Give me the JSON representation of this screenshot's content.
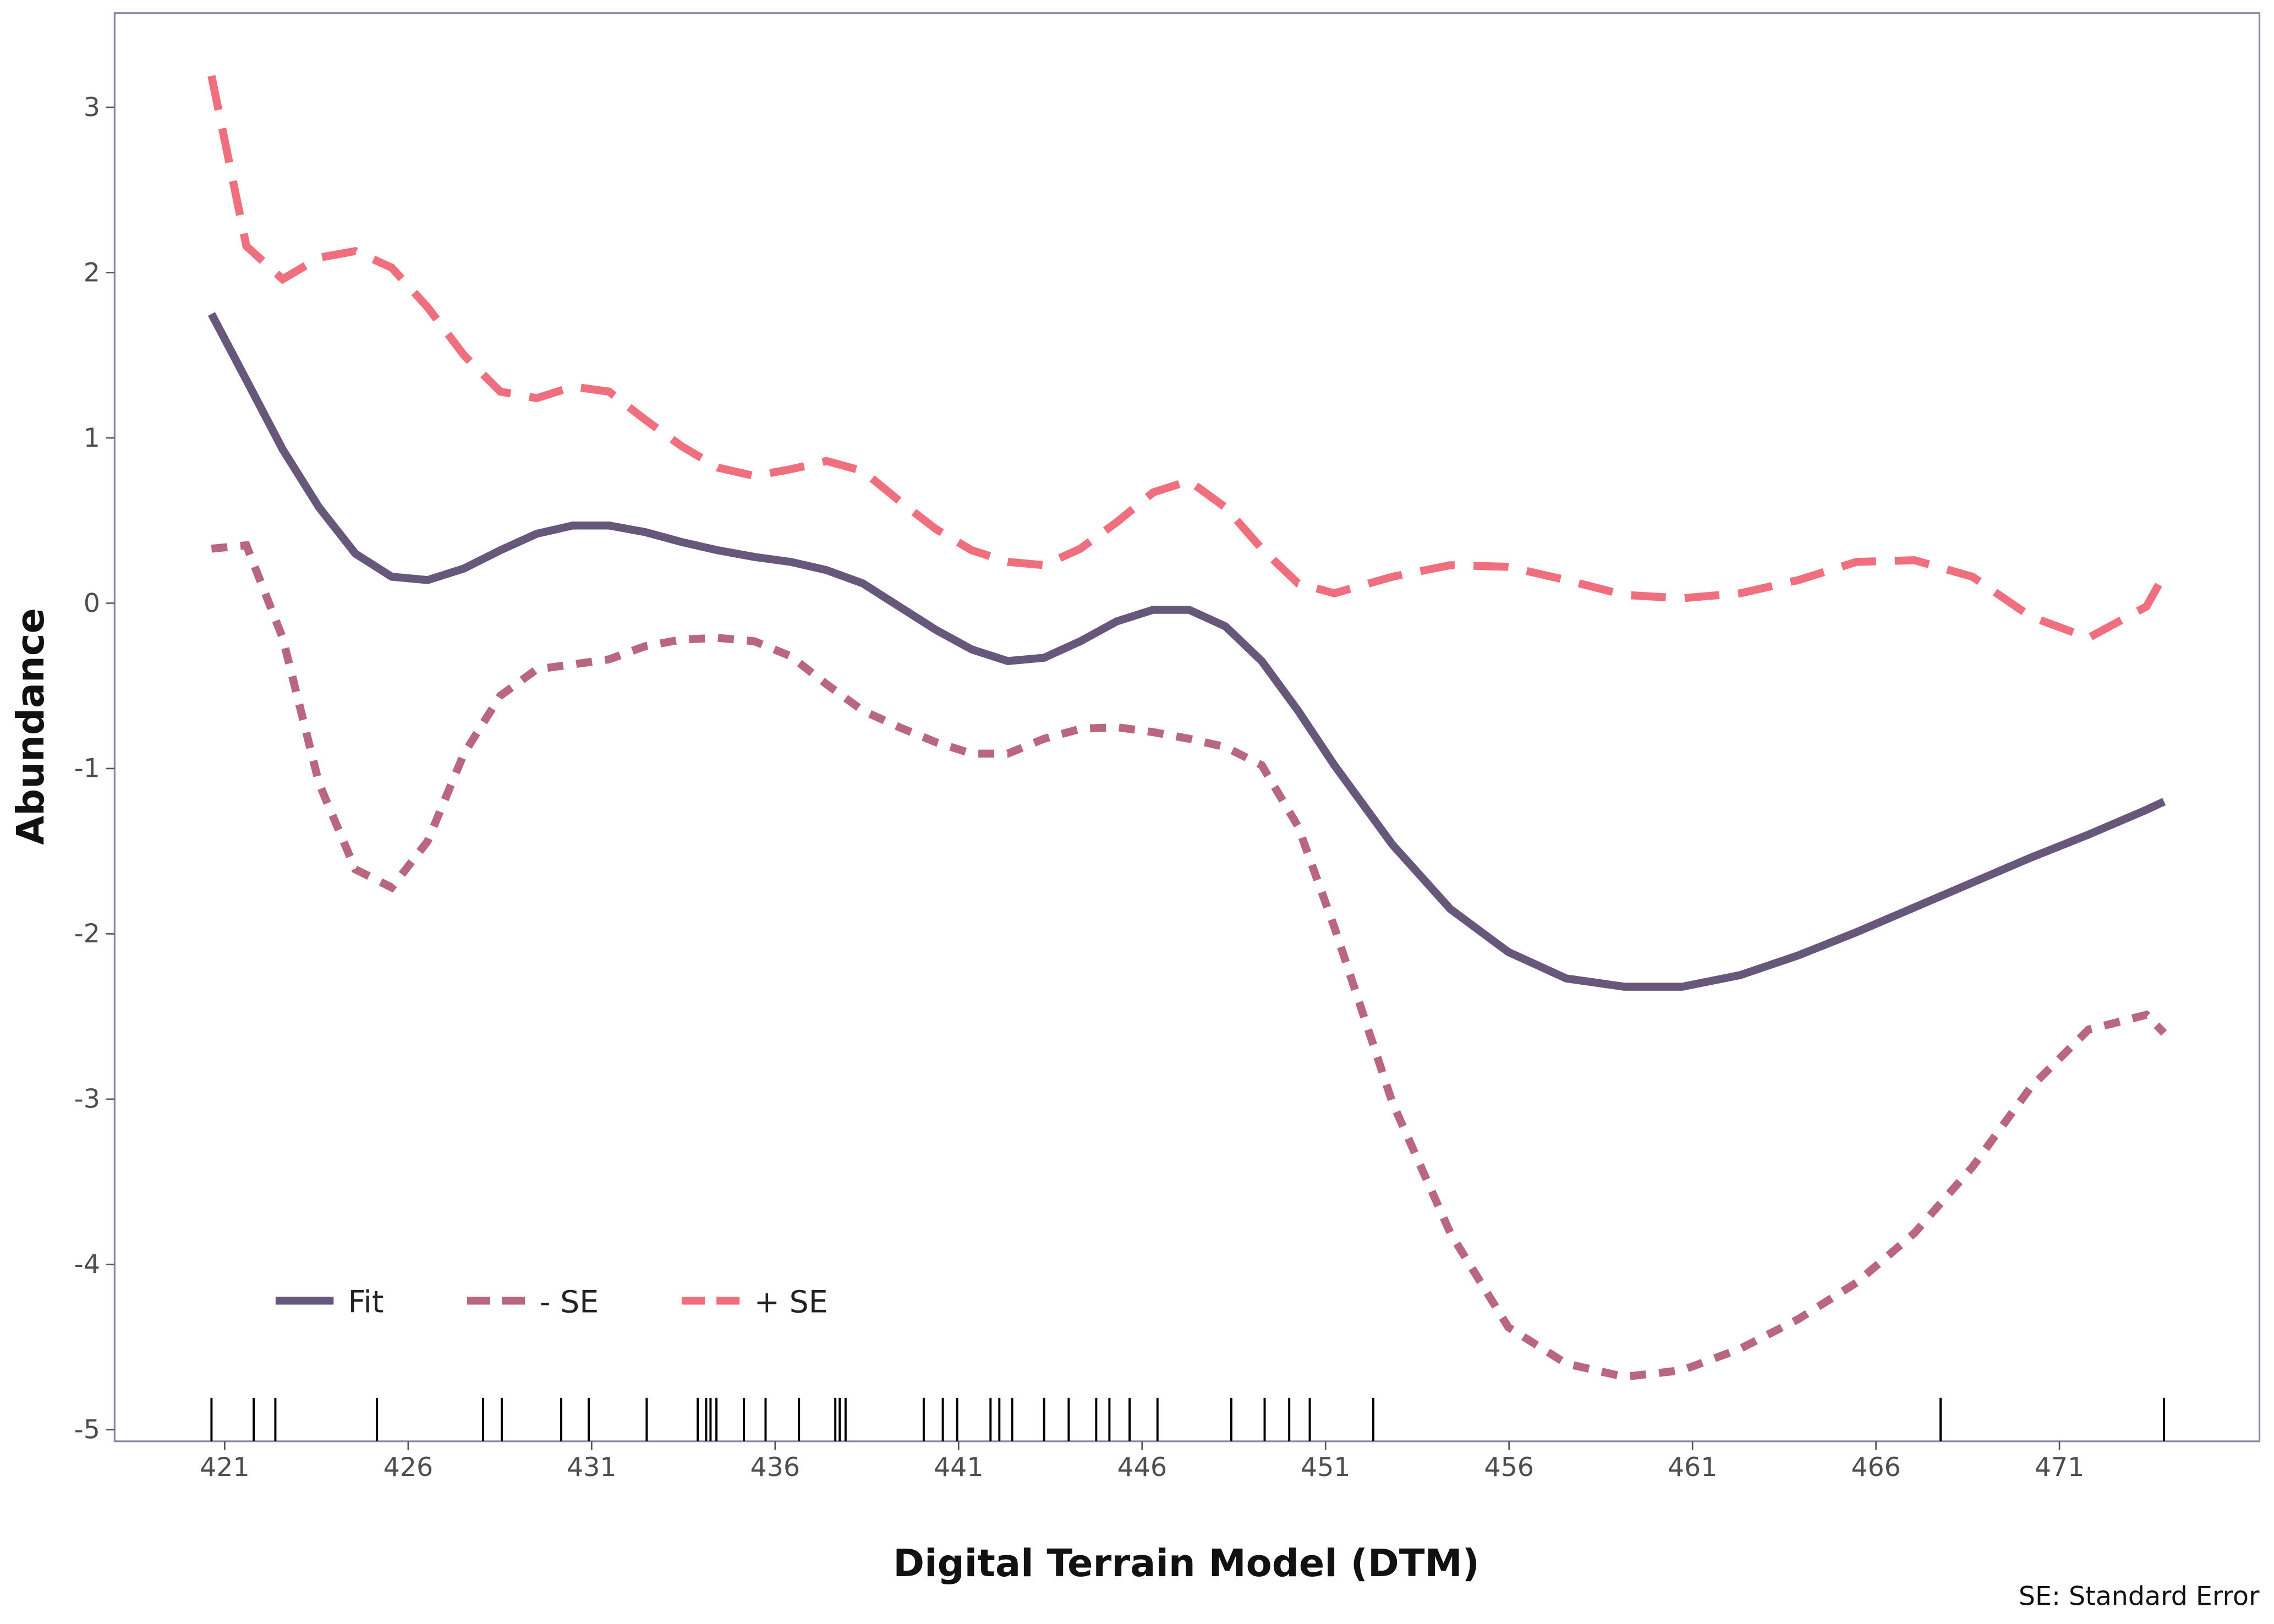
{
  "chart_data": {
    "type": "line",
    "x_label": "Digital Terrain Model (DTM)",
    "y_label": "Abundance",
    "caption": "SE: Standard Error",
    "x": [
      420.64,
      421.59,
      422.58,
      423.57,
      424.56,
      425.55,
      426.53,
      427.52,
      428.51,
      429.5,
      430.49,
      431.47,
      432.46,
      433.45,
      434.44,
      435.43,
      436.42,
      437.4,
      438.39,
      439.38,
      440.37,
      441.36,
      442.34,
      443.33,
      444.32,
      445.31,
      446.3,
      447.28,
      448.27,
      449.26,
      450.25,
      451.24,
      452.82,
      454.4,
      455.98,
      457.56,
      459.14,
      460.72,
      462.3,
      463.89,
      465.47,
      467.05,
      468.63,
      470.21,
      471.79,
      473.37,
      473.85
    ],
    "series": [
      {
        "name": "Fit",
        "color": "#67577a",
        "dash": "solid",
        "values": [
          1.75,
          1.35,
          0.93,
          0.58,
          0.3,
          0.16,
          0.14,
          0.21,
          0.32,
          0.42,
          0.47,
          0.47,
          0.43,
          0.37,
          0.32,
          0.28,
          0.25,
          0.2,
          0.12,
          -0.02,
          -0.16,
          -0.28,
          -0.35,
          -0.33,
          -0.23,
          -0.11,
          -0.04,
          -0.04,
          -0.14,
          -0.35,
          -0.65,
          -0.98,
          -1.46,
          -1.85,
          -2.11,
          -2.27,
          -2.32,
          -2.32,
          -2.25,
          -2.13,
          -1.99,
          -1.84,
          -1.69,
          -1.54,
          -1.4,
          -1.25,
          -1.2
        ]
      },
      {
        "name": "- SE",
        "color": "#b9667f",
        "dash": "short",
        "values": [
          0.33,
          0.35,
          -0.21,
          -1.09,
          -1.61,
          -1.72,
          -1.44,
          -0.91,
          -0.56,
          -0.4,
          -0.37,
          -0.34,
          -0.26,
          -0.22,
          -0.21,
          -0.23,
          -0.32,
          -0.49,
          -0.65,
          -0.75,
          -0.84,
          -0.91,
          -0.91,
          -0.82,
          -0.76,
          -0.75,
          -0.78,
          -0.82,
          -0.87,
          -0.98,
          -1.35,
          -1.96,
          -3.02,
          -3.81,
          -4.38,
          -4.6,
          -4.68,
          -4.64,
          -4.51,
          -4.33,
          -4.11,
          -3.81,
          -3.41,
          -2.93,
          -2.58,
          -2.49,
          -2.6
        ]
      },
      {
        "name": "+ SE",
        "color": "#f06f7e",
        "dash": "long",
        "values": [
          3.19,
          2.16,
          1.96,
          2.09,
          2.13,
          2.03,
          1.79,
          1.5,
          1.28,
          1.24,
          1.31,
          1.28,
          1.11,
          0.95,
          0.82,
          0.77,
          0.81,
          0.86,
          0.8,
          0.62,
          0.45,
          0.32,
          0.25,
          0.23,
          0.33,
          0.49,
          0.67,
          0.74,
          0.58,
          0.33,
          0.12,
          0.06,
          0.16,
          0.23,
          0.22,
          0.14,
          0.05,
          0.03,
          0.06,
          0.14,
          0.25,
          0.26,
          0.16,
          -0.08,
          -0.21,
          -0.02,
          0.17
        ]
      }
    ],
    "rug": [
      420.64,
      421.79,
      422.38,
      425.15,
      428.04,
      428.55,
      430.17,
      430.92,
      432.5,
      433.89,
      434.12,
      434.24,
      434.4,
      435.15,
      435.74,
      436.65,
      437.64,
      437.76,
      437.92,
      440.05,
      440.57,
      440.96,
      441.87,
      442.11,
      442.46,
      443.33,
      444.0,
      444.75,
      445.11,
      445.66,
      446.42,
      448.43,
      449.34,
      450.01,
      450.57,
      452.3,
      467.76,
      473.85
    ],
    "rug_color": "#000000",
    "xlim": [
      418.0,
      476.45
    ],
    "ylim": [
      -5.07,
      3.57
    ],
    "xticks": [
      421,
      426,
      431,
      436,
      441,
      446,
      451,
      456,
      461,
      466,
      471
    ],
    "yticks": [
      -5,
      -4,
      -3,
      -2,
      -1,
      0,
      1,
      2,
      3
    ],
    "grid": false,
    "legend_position": "bottom-left"
  }
}
